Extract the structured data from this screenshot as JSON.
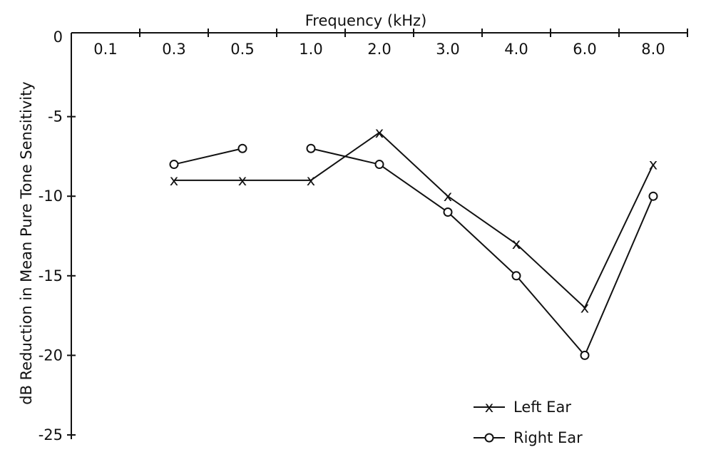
{
  "chart_data": {
    "type": "line",
    "title": "",
    "xlabel": "Frequency (kHz)",
    "ylabel": "dB Reduction in Mean Pure Tone Sensitivity",
    "categories": [
      "0.1",
      "0.3",
      "0.5",
      "1.0",
      "2.0",
      "3.0",
      "4.0",
      "6.0",
      "8.0"
    ],
    "ylim": [
      -25,
      0
    ],
    "yticks": [
      0,
      -5,
      -10,
      -15,
      -20,
      -25
    ],
    "ytick_labels": [
      "0",
      "-5",
      "-10",
      "-15",
      "-20",
      "-25"
    ],
    "grid": false,
    "legend_position": "bottom-right",
    "series": [
      {
        "name": "Left Ear",
        "marker": "x",
        "marker_symbol": "x",
        "values": [
          null,
          -9,
          -9,
          -9,
          -6,
          -10,
          -13,
          -17,
          -8
        ],
        "line_segments": [
          [
            1,
            2,
            3,
            4,
            5,
            6,
            7,
            8
          ]
        ]
      },
      {
        "name": "Right Ear",
        "marker": "circle",
        "values": [
          null,
          -8,
          -7,
          -7,
          -8,
          -11,
          -15,
          -20,
          -10
        ],
        "line_segments": [
          [
            1,
            2
          ],
          [
            3,
            4,
            5,
            6,
            7,
            8
          ]
        ]
      }
    ]
  }
}
